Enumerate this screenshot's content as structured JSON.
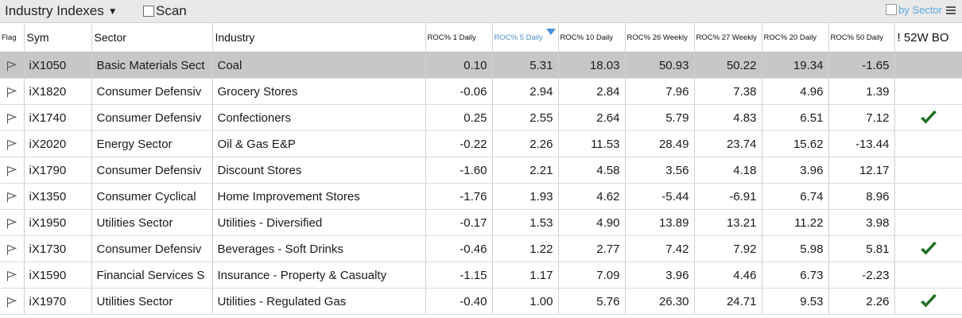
{
  "header": {
    "title": "Industry Indexes",
    "title_caret": "▼",
    "scan_label": "Scan",
    "by_sector_label": "by Sector"
  },
  "columns": [
    "Flag",
    "Sym",
    "Sector",
    "Industry",
    "ROC% 1 Daily",
    "ROC% 5 Daily",
    "ROC% 10 Daily",
    "ROC% 26 Weekly",
    "ROC% 27 Weekly",
    "ROC% 20 Daily",
    "ROC% 50 Daily",
    "! 52W BO"
  ],
  "sorted_column": "ROC% 5 Daily",
  "rows": [
    {
      "sym": "iX1050",
      "sector": "Basic Materials Sect",
      "industry": "Coal",
      "roc1d": "0.10",
      "roc5d": "5.31",
      "roc10d": "18.03",
      "roc26w": "50.93",
      "roc27w": "50.22",
      "roc20d": "19.34",
      "roc50d": "-1.65",
      "bo": false,
      "selected": true
    },
    {
      "sym": "iX1820",
      "sector": "Consumer Defensiv",
      "industry": "Grocery Stores",
      "roc1d": "-0.06",
      "roc5d": "2.94",
      "roc10d": "2.84",
      "roc26w": "7.96",
      "roc27w": "7.38",
      "roc20d": "4.96",
      "roc50d": "1.39",
      "bo": false
    },
    {
      "sym": "iX1740",
      "sector": "Consumer Defensiv",
      "industry": "Confectioners",
      "roc1d": "0.25",
      "roc5d": "2.55",
      "roc10d": "2.64",
      "roc26w": "5.79",
      "roc27w": "4.83",
      "roc20d": "6.51",
      "roc50d": "7.12",
      "bo": true
    },
    {
      "sym": "iX2020",
      "sector": "Energy Sector",
      "industry": "Oil & Gas E&P",
      "roc1d": "-0.22",
      "roc5d": "2.26",
      "roc10d": "11.53",
      "roc26w": "28.49",
      "roc27w": "23.74",
      "roc20d": "15.62",
      "roc50d": "-13.44",
      "bo": false
    },
    {
      "sym": "iX1790",
      "sector": "Consumer Defensiv",
      "industry": "Discount Stores",
      "roc1d": "-1.60",
      "roc5d": "2.21",
      "roc10d": "4.58",
      "roc26w": "3.56",
      "roc27w": "4.18",
      "roc20d": "3.96",
      "roc50d": "12.17",
      "bo": false
    },
    {
      "sym": "iX1350",
      "sector": "Consumer Cyclical",
      "industry": "Home Improvement Stores",
      "roc1d": "-1.76",
      "roc5d": "1.93",
      "roc10d": "4.62",
      "roc26w": "-5.44",
      "roc27w": "-6.91",
      "roc20d": "6.74",
      "roc50d": "8.96",
      "bo": false
    },
    {
      "sym": "iX1950",
      "sector": "Utilities Sector",
      "industry": "Utilities - Diversified",
      "roc1d": "-0.17",
      "roc5d": "1.53",
      "roc10d": "4.90",
      "roc26w": "13.89",
      "roc27w": "13.21",
      "roc20d": "11.22",
      "roc50d": "3.98",
      "bo": false
    },
    {
      "sym": "iX1730",
      "sector": "Consumer Defensiv",
      "industry": "Beverages - Soft Drinks",
      "roc1d": "-0.46",
      "roc5d": "1.22",
      "roc10d": "2.77",
      "roc26w": "7.42",
      "roc27w": "7.92",
      "roc20d": "5.98",
      "roc50d": "5.81",
      "bo": true
    },
    {
      "sym": "iX1590",
      "sector": "Financial Services S",
      "industry": "Insurance - Property & Casualty",
      "roc1d": "-1.15",
      "roc5d": "1.17",
      "roc10d": "7.09",
      "roc26w": "3.96",
      "roc27w": "4.46",
      "roc20d": "6.73",
      "roc50d": "-2.23",
      "bo": false
    },
    {
      "sym": "iX1970",
      "sector": "Utilities Sector",
      "industry": "Utilities - Regulated Gas",
      "roc1d": "-0.40",
      "roc5d": "1.00",
      "roc10d": "5.76",
      "roc26w": "26.30",
      "roc27w": "24.71",
      "roc20d": "9.53",
      "roc50d": "2.26",
      "bo": true
    }
  ],
  "icons": {
    "flag": "flag-outline-icon",
    "breakout": "checkmark-icon",
    "menu": "hamburger-menu-icon",
    "dropdown": "dropdown-caret-icon"
  },
  "colors": {
    "selected_row": "#c7c7c7",
    "sorted_header": "#4d8fc9",
    "by_sector": "#5aa9dd",
    "checkmark": "#1f6f1f"
  }
}
